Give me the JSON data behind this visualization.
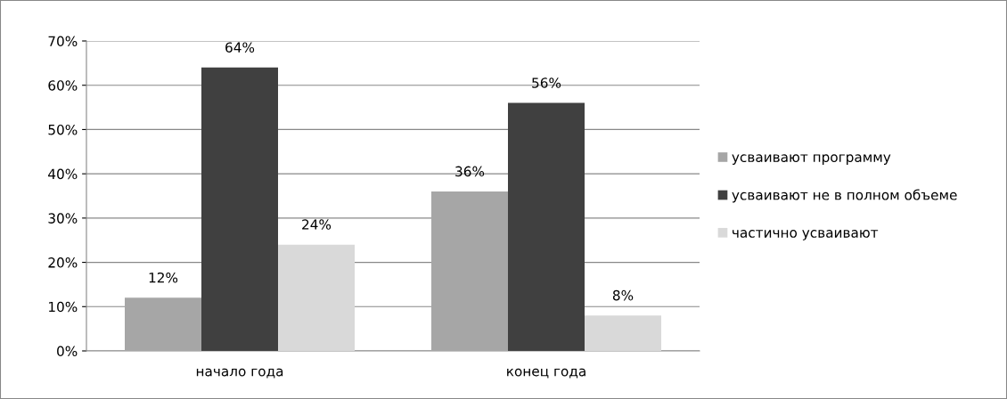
{
  "chart_data": {
    "type": "bar",
    "categories": [
      "начало года",
      "конец года"
    ],
    "series": [
      {
        "name": "усваивают программу",
        "color": "#a6a6a6",
        "values": [
          12,
          36
        ],
        "value_labels": [
          "12%",
          "36%"
        ]
      },
      {
        "name": "усваивают не в полном объеме",
        "color": "#404040",
        "values": [
          64,
          56
        ],
        "value_labels": [
          "64%",
          "56%"
        ]
      },
      {
        "name": "частично усваивают",
        "color": "#d9d9d9",
        "values": [
          24,
          8
        ],
        "value_labels": [
          "24%",
          "8%"
        ]
      }
    ],
    "ylim": [
      0,
      70
    ],
    "yticks": [
      {
        "value": 0,
        "label": "0%"
      },
      {
        "value": 10,
        "label": "10%"
      },
      {
        "value": 20,
        "label": "20%"
      },
      {
        "value": 30,
        "label": "30%"
      },
      {
        "value": 40,
        "label": "40%"
      },
      {
        "value": 50,
        "label": "50%"
      },
      {
        "value": 60,
        "label": "60%"
      },
      {
        "value": 70,
        "label": "70%"
      }
    ],
    "grid": "y",
    "legend": "right"
  }
}
